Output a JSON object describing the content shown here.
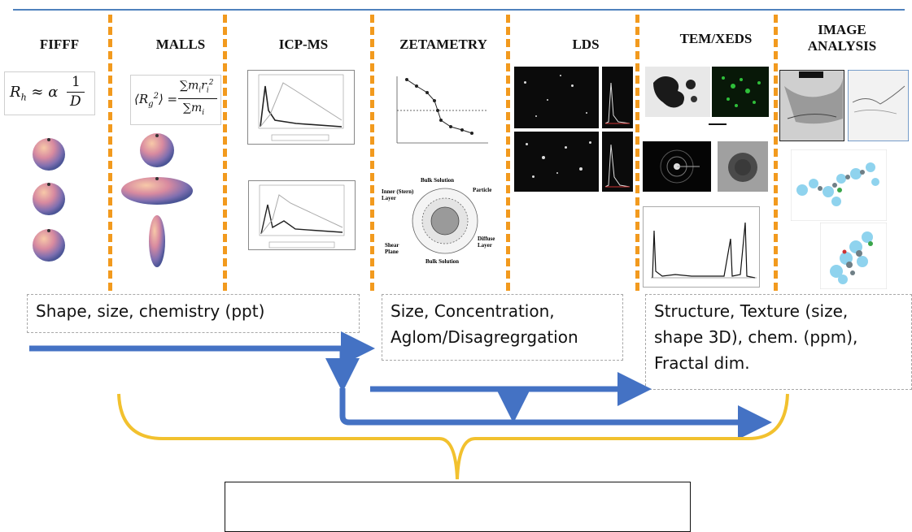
{
  "columns": [
    {
      "id": "fifff",
      "title": "FIFFF"
    },
    {
      "id": "malls",
      "title": "MALLS"
    },
    {
      "id": "icpms",
      "title": "ICP-MS"
    },
    {
      "id": "zeta",
      "title": "ZETAMETRY"
    },
    {
      "id": "lds",
      "title": "LDS"
    },
    {
      "id": "tem",
      "title": "TEM/XEDS"
    },
    {
      "id": "image",
      "title": "IMAGE\nANALYSIS"
    }
  ],
  "formulas": {
    "fifff": {
      "lhs": "R",
      "sub": "h",
      "approx": "≈ α",
      "num": "1",
      "den": "D"
    },
    "malls": {
      "lhs": "⟨R",
      "sub": "g",
      "sup": "2",
      "close": "⟩ =",
      "num": "∑m",
      "num_sub": "i",
      "num_r": "r",
      "num_r_sub": "i",
      "num_r_sup": "2",
      "den": "∑m",
      "den_sub": "i"
    }
  },
  "zeta_diagram": {
    "top": "Bulk Solution",
    "bottom": "Bulk Solution",
    "inner": "Inner (Stern)\nLayer",
    "particle": "Particle",
    "shear": "Shear\nPlane",
    "diffuse": "Diffuse\nLayer"
  },
  "boxes": {
    "left": "Shape, size, chemistry (ppt)",
    "middle": "Size,  Concentration,\nAglom/Disagregrgation",
    "right": "Structure, Texture (size,\nshape 3D), chem. (ppm),\nFractal dim."
  },
  "bottom_box": "",
  "colors": {
    "dash": "#f29a1e",
    "arrow": "#4472c4",
    "brace": "#f2c12e",
    "rule": "#4f81bd"
  }
}
